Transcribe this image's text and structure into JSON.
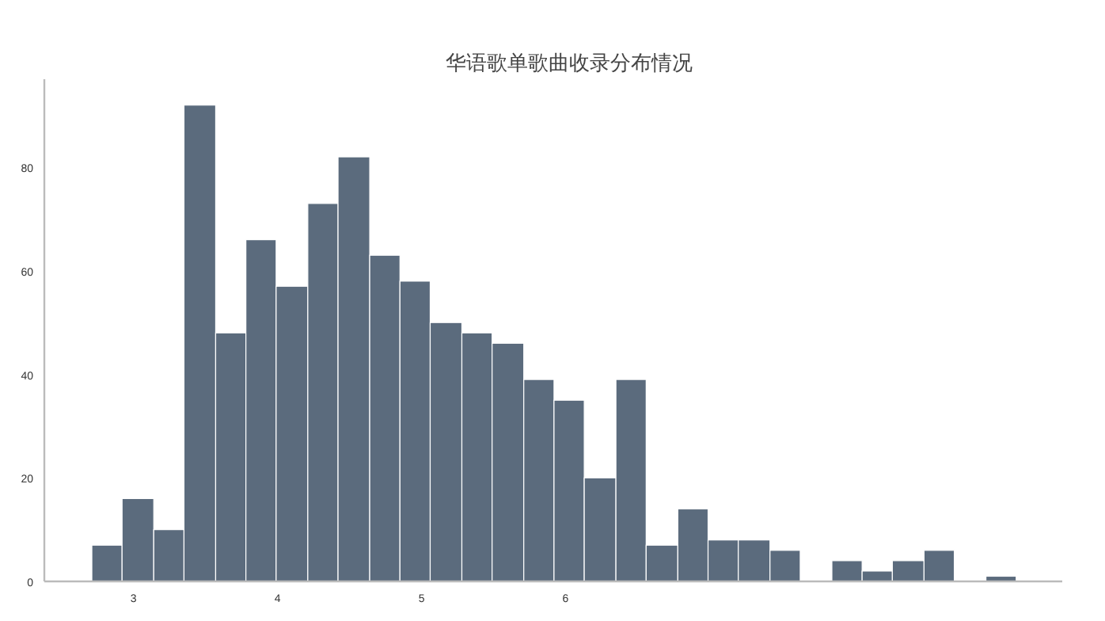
{
  "chart_data": {
    "type": "histogram",
    "title": "华语歌单歌曲收录分布情况",
    "bins": [
      2.71,
      2.92,
      3.14,
      3.35,
      3.57,
      3.78,
      3.99,
      4.21,
      4.42,
      4.64,
      4.85,
      5.06,
      5.28,
      5.49,
      5.71,
      5.92,
      6.13,
      6.35,
      6.56,
      6.78,
      6.99,
      7.2,
      7.42,
      7.63,
      7.85,
      8.06,
      8.27,
      8.49,
      8.7,
      8.92,
      9.13
    ],
    "values": [
      7,
      16,
      10,
      92,
      48,
      66,
      57,
      73,
      82,
      63,
      58,
      50,
      48,
      46,
      39,
      35,
      20,
      39,
      7,
      14,
      8,
      8,
      6,
      0,
      4,
      2,
      4,
      6,
      0,
      1
    ],
    "color": "#5b6b7d",
    "xlim": [
      2.38,
      9.45
    ],
    "xticks": [
      3,
      4,
      5,
      6
    ],
    "ylim": [
      0,
      97
    ],
    "yticks": [
      0,
      20,
      40,
      60,
      80
    ],
    "grid": false
  }
}
